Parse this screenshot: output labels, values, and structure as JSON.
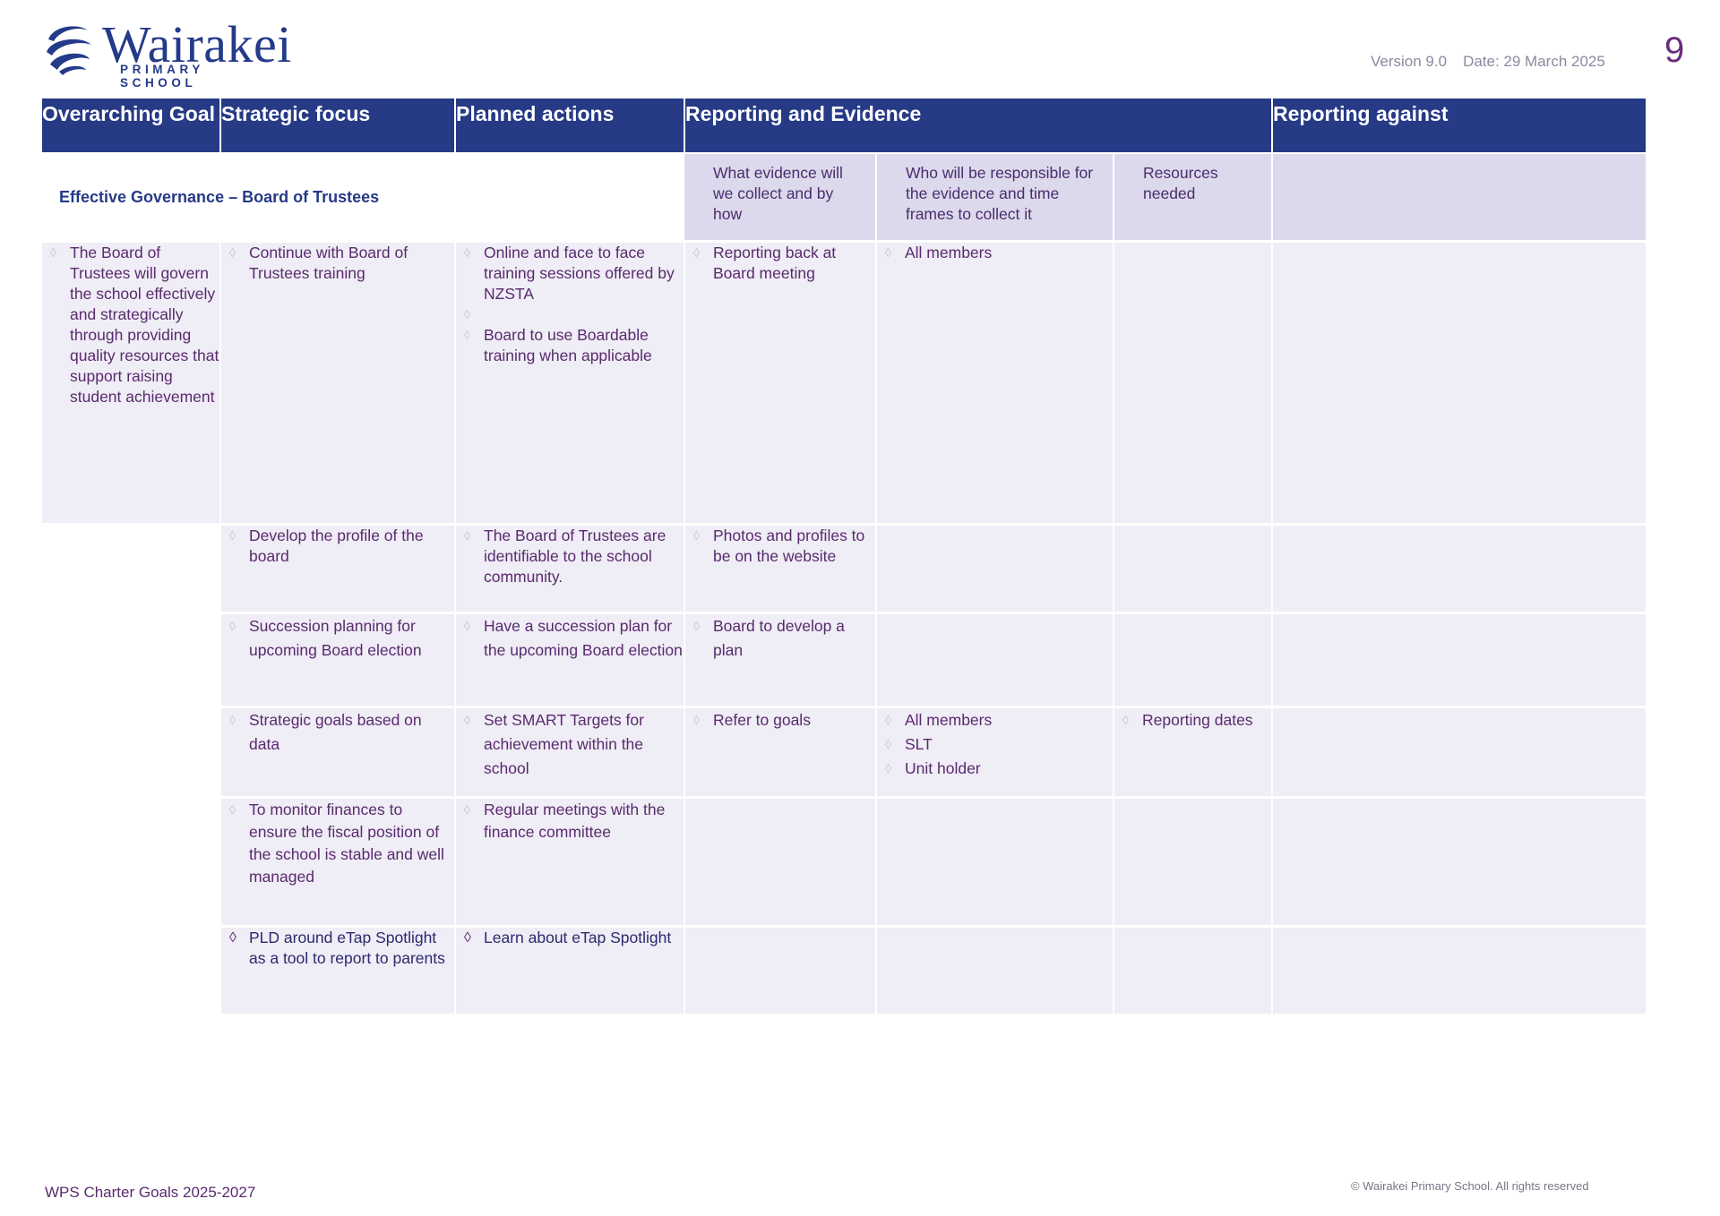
{
  "header": {
    "logo_name": "Wairakei",
    "logo_subtitle": "PRIMARY SCHOOL",
    "version": "Version 9.0",
    "date": "Date: 29 March 2025",
    "page_number": "9"
  },
  "table": {
    "columns": {
      "goal": "Overarching Goal",
      "focus": "Strategic focus",
      "actions": "Planned actions",
      "reporting_evidence": "Reporting and Evidence",
      "reporting_against": "Reporting against"
    },
    "section_title": "Effective Governance – Board of Trustees",
    "sub_columns": {
      "evidence": "What evidence will we collect and by how",
      "responsible": "Who will be responsible for the evidence and time frames to collect it",
      "resources": "Resources needed"
    },
    "rows": [
      {
        "goal": "The Board of Trustees will govern the school effectively and strategically through providing quality resources that support raising student achievement",
        "focus": "Continue with Board of Trustees training",
        "actions": [
          "Online and face to face training sessions offered by NZSTA",
          "Board to use Boardable training when applicable"
        ],
        "evidence": "Reporting back at Board meeting",
        "responsible": [
          "All members"
        ],
        "resources": ""
      },
      {
        "focus": "Develop the profile of the board",
        "actions": [
          "The Board of Trustees are identifiable to the school community."
        ],
        "evidence": "Photos and profiles to be on the website",
        "responsible": [],
        "resources": ""
      },
      {
        "focus": "Succession planning for upcoming Board election",
        "actions": [
          "Have a succession plan for the upcoming Board election"
        ],
        "evidence": "Board to develop a plan",
        "responsible": [],
        "resources": ""
      },
      {
        "focus": "Strategic goals based on data",
        "actions": [
          "Set SMART Targets for achievement within the school"
        ],
        "evidence": "Refer to goals",
        "responsible": [
          "All members",
          "SLT",
          "Unit holder"
        ],
        "resources": "Reporting dates"
      },
      {
        "focus": "To monitor finances to ensure the fiscal position of the school is stable and well managed",
        "actions": [
          "Regular meetings with the finance committee"
        ],
        "evidence": "",
        "responsible": [],
        "resources": ""
      },
      {
        "focus": "PLD around eTap Spotlight as a tool to report to parents",
        "actions": [
          "Learn about eTap Spotlight"
        ],
        "evidence": "",
        "responsible": [],
        "resources": ""
      }
    ]
  },
  "footer": {
    "left": "WPS Charter  Goals 2025-2027",
    "right": "© Wairakei Primary School. All rights reserved"
  }
}
